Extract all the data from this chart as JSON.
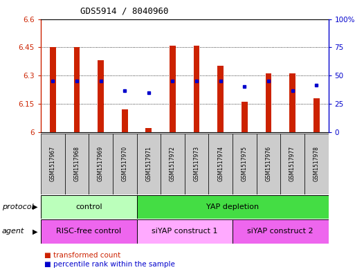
{
  "title": "GDS5914 / 8040960",
  "samples": [
    "GSM1517967",
    "GSM1517968",
    "GSM1517969",
    "GSM1517970",
    "GSM1517971",
    "GSM1517972",
    "GSM1517973",
    "GSM1517974",
    "GSM1517975",
    "GSM1517976",
    "GSM1517977",
    "GSM1517978"
  ],
  "bar_heights": [
    6.45,
    6.45,
    6.38,
    6.12,
    6.02,
    6.46,
    6.46,
    6.35,
    6.16,
    6.31,
    6.31,
    6.18
  ],
  "bar_base": 6.0,
  "blue_dots_y": [
    6.27,
    6.27,
    6.27,
    6.22,
    6.21,
    6.27,
    6.27,
    6.27,
    6.24,
    6.27,
    6.22,
    6.25
  ],
  "ylim_left": [
    6.0,
    6.6
  ],
  "ylim_right": [
    0,
    100
  ],
  "yticks_left": [
    6.0,
    6.15,
    6.3,
    6.45,
    6.6
  ],
  "yticks_right": [
    0,
    25,
    50,
    75,
    100
  ],
  "ytick_labels_left": [
    "6",
    "6.15",
    "6.3",
    "6.45",
    "6.6"
  ],
  "ytick_labels_right": [
    "0",
    "25",
    "50",
    "75",
    "100%"
  ],
  "bar_color": "#cc2200",
  "dot_color": "#0000cc",
  "protocol_groups": [
    {
      "label": "control",
      "start": 0,
      "end": 4,
      "color": "#bbffbb"
    },
    {
      "label": "YAP depletion",
      "start": 4,
      "end": 12,
      "color": "#44dd44"
    }
  ],
  "agent_groups": [
    {
      "label": "RISC-free control",
      "start": 0,
      "end": 4,
      "color": "#ee66ee"
    },
    {
      "label": "siYAP construct 1",
      "start": 4,
      "end": 8,
      "color": "#ffaaff"
    },
    {
      "label": "siYAP construct 2",
      "start": 8,
      "end": 12,
      "color": "#ee66ee"
    }
  ],
  "legend_items": [
    {
      "label": "transformed count",
      "color": "#cc2200"
    },
    {
      "label": "percentile rank within the sample",
      "color": "#0000cc"
    }
  ],
  "protocol_label": "protocol",
  "agent_label": "agent",
  "bg_color": "#ffffff",
  "bar_width": 0.25,
  "sample_bg": "#cccccc"
}
